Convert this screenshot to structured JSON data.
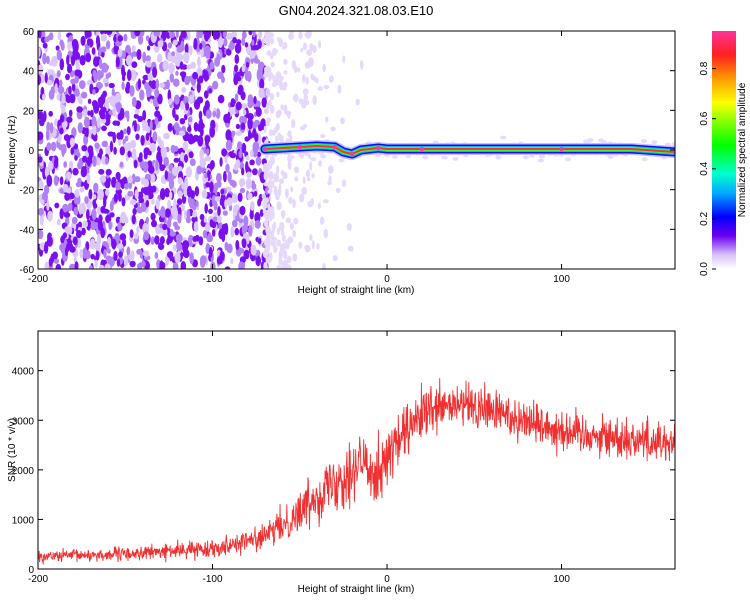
{
  "title": "GN04.2024.321.08.03.E10",
  "chart_data": [
    {
      "type": "heatmap",
      "xlabel": "Height of straight line (km)",
      "ylabel": "Frequency (Hz)",
      "xlim": [
        -200,
        165
      ],
      "ylim": [
        -60,
        60
      ],
      "xticks": [
        -200,
        -100,
        0,
        100
      ],
      "yticks": [
        -60,
        -40,
        -20,
        0,
        20,
        40,
        60
      ],
      "colorbar": {
        "label": "Normalized spectral amplitude",
        "range": [
          0,
          0.95
        ],
        "ticks": [
          "0.0",
          "0.2",
          "0.4",
          "0.6",
          "0.8"
        ]
      },
      "noise_region": {
        "x_range": [
          -200,
          -70
        ],
        "amplitude": 0.1
      },
      "ridge": [
        {
          "x": -70,
          "freq": 0.5
        },
        {
          "x": -60,
          "freq": 1.0
        },
        {
          "x": -50,
          "freq": 1.5
        },
        {
          "x": -40,
          "freq": 2.0
        },
        {
          "x": -30,
          "freq": 1.5
        },
        {
          "x": -25,
          "freq": -1.0
        },
        {
          "x": -20,
          "freq": -2.0
        },
        {
          "x": -15,
          "freq": 0.0
        },
        {
          "x": -5,
          "freq": 1.0
        },
        {
          "x": 0,
          "freq": 0.5
        },
        {
          "x": 20,
          "freq": 0.5
        },
        {
          "x": 60,
          "freq": 0.5
        },
        {
          "x": 100,
          "freq": 0.5
        },
        {
          "x": 140,
          "freq": 0.5
        },
        {
          "x": 165,
          "freq": -1.0
        }
      ]
    },
    {
      "type": "line",
      "xlabel": "Height of straight line (km)",
      "ylabel": "SNR (10 * v/v)",
      "xlim": [
        -200,
        165
      ],
      "ylim": [
        0,
        4800
      ],
      "xticks": [
        -200,
        -100,
        0,
        100
      ],
      "yticks": [
        0,
        1000,
        2000,
        3000,
        4000
      ],
      "color": "#f03030",
      "envelope": [
        {
          "x": -200,
          "mean": 250,
          "spread": 120
        },
        {
          "x": -150,
          "mean": 300,
          "spread": 150
        },
        {
          "x": -100,
          "mean": 420,
          "spread": 180
        },
        {
          "x": -70,
          "mean": 650,
          "spread": 260
        },
        {
          "x": -55,
          "mean": 1000,
          "spread": 400
        },
        {
          "x": -40,
          "mean": 1500,
          "spread": 550
        },
        {
          "x": -25,
          "mean": 1900,
          "spread": 700
        },
        {
          "x": -15,
          "mean": 2100,
          "spread": 800
        },
        {
          "x": -5,
          "mean": 2000,
          "spread": 700
        },
        {
          "x": 5,
          "mean": 2500,
          "spread": 600
        },
        {
          "x": 20,
          "mean": 3100,
          "spread": 550
        },
        {
          "x": 40,
          "mean": 3300,
          "spread": 500
        },
        {
          "x": 60,
          "mean": 3200,
          "spread": 500
        },
        {
          "x": 80,
          "mean": 3000,
          "spread": 480
        },
        {
          "x": 100,
          "mean": 2800,
          "spread": 450
        },
        {
          "x": 130,
          "mean": 2650,
          "spread": 450
        },
        {
          "x": 165,
          "mean": 2550,
          "spread": 450
        }
      ]
    }
  ]
}
